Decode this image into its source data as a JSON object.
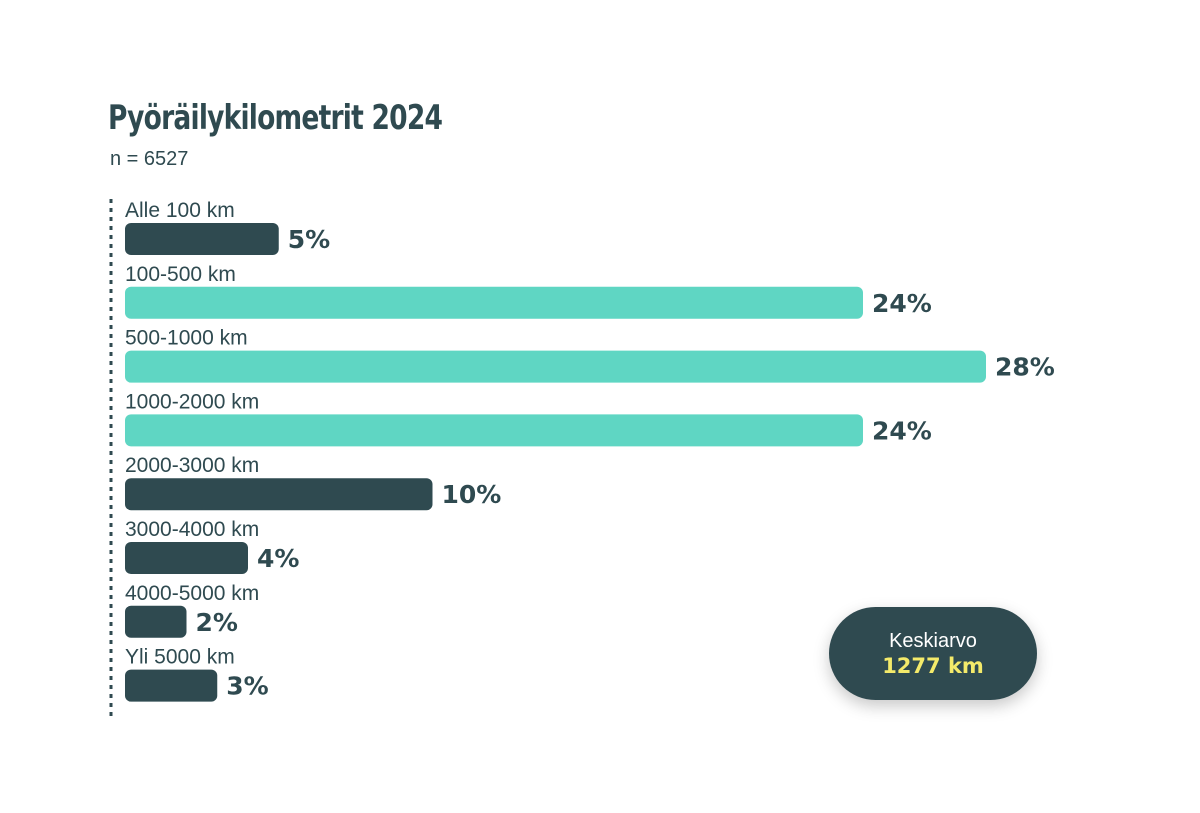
{
  "chart_data": {
    "type": "bar",
    "orientation": "horizontal",
    "title": "Pyöräilykilometrit 2024",
    "subtitle": "n = 6527",
    "categories": [
      "Alle 100 km",
      "100-500 km",
      "500-1000 km",
      "1000-2000 km",
      "2000-3000 km",
      "3000-4000 km",
      "4000-5000 km",
      "Yli 5000 km"
    ],
    "values": [
      5,
      24,
      28,
      24,
      10,
      4,
      2,
      3
    ],
    "value_labels": [
      "5%",
      "24%",
      "28%",
      "24%",
      "10%",
      "4%",
      "2%",
      "3%"
    ],
    "highlighted": [
      false,
      true,
      true,
      true,
      false,
      false,
      false,
      false
    ],
    "xlim": [
      0,
      28
    ],
    "grid": false,
    "legend": "none"
  },
  "colors": {
    "bar_dark": "#2f4a50",
    "bar_highlight": "#5fd6c3",
    "text": "#2f4a50",
    "callout_bg": "#2f4a50",
    "callout_value": "#f4ea6a"
  },
  "callout": {
    "label": "Keskiarvo",
    "value": "1277 km"
  }
}
